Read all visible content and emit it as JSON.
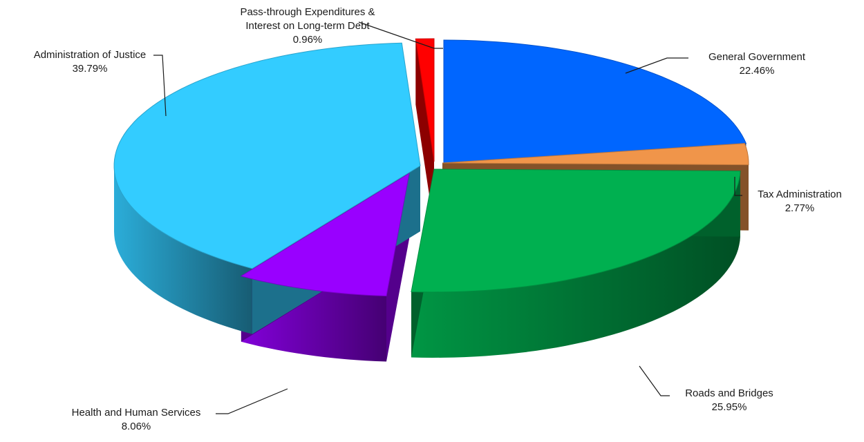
{
  "chart_data": {
    "type": "pie",
    "style": "3d-exploded",
    "legend": "none",
    "slices": [
      {
        "label": "General Government",
        "value": 22.46,
        "percent_label": "22.46%",
        "color": "#0066ff"
      },
      {
        "label": "Tax Administration",
        "value": 2.77,
        "percent_label": "2.77%",
        "color": "#f0954a"
      },
      {
        "label": "Roads and Bridges",
        "value": 25.95,
        "percent_label": "25.95%",
        "color": "#00b050"
      },
      {
        "label": "Health and Human Services",
        "value": 8.06,
        "percent_label": "8.06%",
        "color": "#9900ff"
      },
      {
        "label": "Administration of Justice",
        "value": 39.79,
        "percent_label": "39.79%",
        "color": "#33ccff"
      },
      {
        "label_lines": [
          "Pass-through Expenditures &",
          "Interest on Long-term Debt"
        ],
        "value": 0.96,
        "percent_label": "0.96%",
        "color": "#ff0000"
      }
    ]
  }
}
